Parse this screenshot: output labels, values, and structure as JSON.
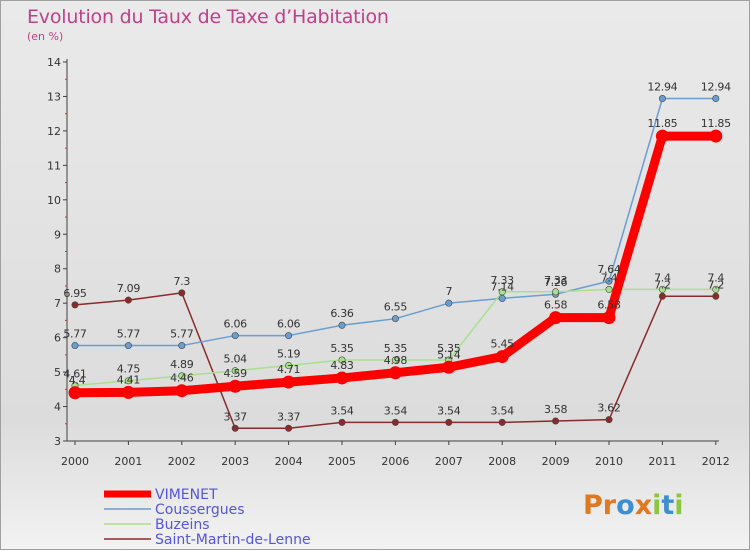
{
  "title": "Evolution du Taux de Taxe d’Habitation",
  "subtitle": "(en %)",
  "logo": {
    "text": "Proxiti",
    "colors": [
      "#e07820",
      "#e07820",
      "#3f8fd0",
      "#e07820",
      "#8cc63f",
      "#3f8fd0",
      "#8cc63f"
    ]
  },
  "colors": {
    "title": "#c0408a",
    "axis": "#404040",
    "legend_text": "#5555dd"
  },
  "chart_data": {
    "type": "line",
    "title": "Evolution du Taux de Taxe d’Habitation",
    "ylabel": "(en %)",
    "x": [
      "2000",
      "2001",
      "2002",
      "2003",
      "2004",
      "2005",
      "2006",
      "2007",
      "2008",
      "2009",
      "2010",
      "2011",
      "2012"
    ],
    "ylim": [
      3,
      14
    ],
    "yticks": [
      "3",
      "4",
      "5",
      "6",
      "7",
      "8",
      "9",
      "10",
      "11",
      "12",
      "13",
      "14"
    ],
    "grid": false,
    "legend_position": "bottom-left",
    "series": [
      {
        "name": "VIMENET",
        "color": "#ff0000",
        "values": [
          4.4,
          4.41,
          4.46,
          4.59,
          4.71,
          4.83,
          4.98,
          5.14,
          5.45,
          6.58,
          6.58,
          11.85,
          11.85
        ],
        "labels": [
          "4.4",
          "4.41",
          "4.46",
          "4.59",
          "4.71",
          "4.83",
          "4.98",
          "5.14",
          "5.45",
          "6.58",
          "6.58",
          "11.85",
          "11.85"
        ]
      },
      {
        "name": "Coussergues",
        "color": "#6a9dd0",
        "values": [
          5.77,
          5.77,
          5.77,
          6.06,
          6.06,
          6.36,
          6.55,
          7.0,
          7.14,
          7.26,
          7.64,
          12.94,
          12.94
        ],
        "labels": [
          "5.77",
          "5.77",
          "5.77",
          "6.06",
          "6.06",
          "6.36",
          "6.55",
          "7",
          "7.14",
          "7.26",
          "7.64",
          "12.94",
          "12.94"
        ]
      },
      {
        "name": "Buzeins",
        "color": "#a8e08c",
        "values": [
          4.61,
          4.75,
          4.89,
          5.04,
          5.19,
          5.35,
          5.35,
          5.35,
          7.33,
          7.33,
          7.4,
          7.4,
          7.4
        ],
        "labels": [
          "4.61",
          "4.75",
          "4.89",
          "5.04",
          "5.19",
          "5.35",
          "5.35",
          "5.35",
          "7.33",
          "7.33",
          "7.4",
          "7.4",
          "7.4"
        ]
      },
      {
        "name": "Saint-Martin-de-Lenne",
        "color": "#8b2a2a",
        "values": [
          6.95,
          7.09,
          7.3,
          3.37,
          3.37,
          3.54,
          3.54,
          3.54,
          3.54,
          3.58,
          3.62,
          7.2,
          7.2
        ],
        "labels": [
          "6.95",
          "7.09",
          "7.3",
          "3.37",
          "3.37",
          "3.54",
          "3.54",
          "3.54",
          "3.54",
          "3.58",
          "3.62",
          "7.2",
          "7.2"
        ]
      }
    ]
  }
}
